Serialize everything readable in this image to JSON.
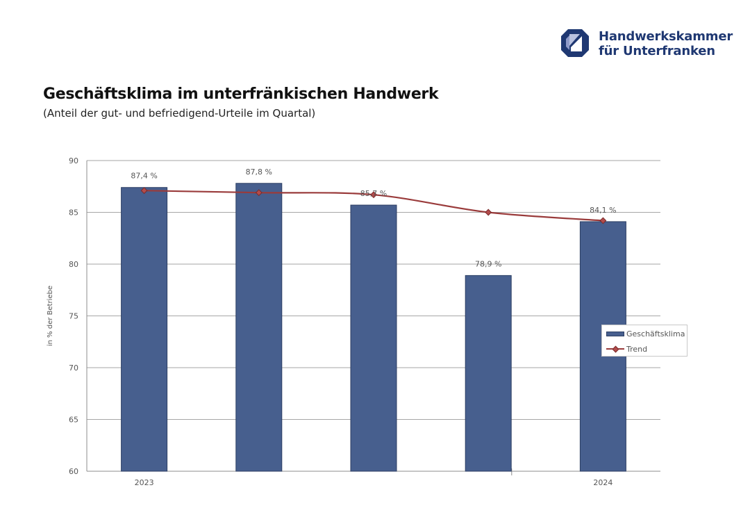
{
  "logo": {
    "line1": "Handwerkskammer",
    "line2": "für Unterfranken",
    "color": "#1f3872"
  },
  "chart_data": {
    "type": "bar",
    "title": "Geschäftsklima im unterfränkischen Handwerk",
    "subtitle": "(Anteil der gut- und befriedigend-Urteile im Quartal)",
    "ylabel": "in % der Betriebe",
    "ylim": [
      60,
      90
    ],
    "yticks": [
      "60",
      "65",
      "70",
      "75",
      "80",
      "85",
      "90"
    ],
    "ytick_values": [
      60,
      65,
      70,
      75,
      80,
      85,
      90
    ],
    "year_labels": [
      {
        "label": "2023",
        "index": 0
      },
      {
        "label": "2024",
        "index": 4
      }
    ],
    "grid": true,
    "legend_position": "right",
    "series": [
      {
        "name": "Geschäftsklima",
        "type": "bar",
        "color": "#475f8e",
        "values": [
          87.4,
          87.8,
          85.7,
          78.9,
          84.1
        ],
        "data_labels": [
          "87,4 %",
          "87,8 %",
          "85,7 %",
          "78,9 %",
          "84,1 %"
        ]
      },
      {
        "name": "Trend",
        "type": "line",
        "color": "#9a3b3b",
        "values": [
          87.1,
          86.9,
          86.7,
          85.0,
          84.2
        ]
      }
    ]
  }
}
